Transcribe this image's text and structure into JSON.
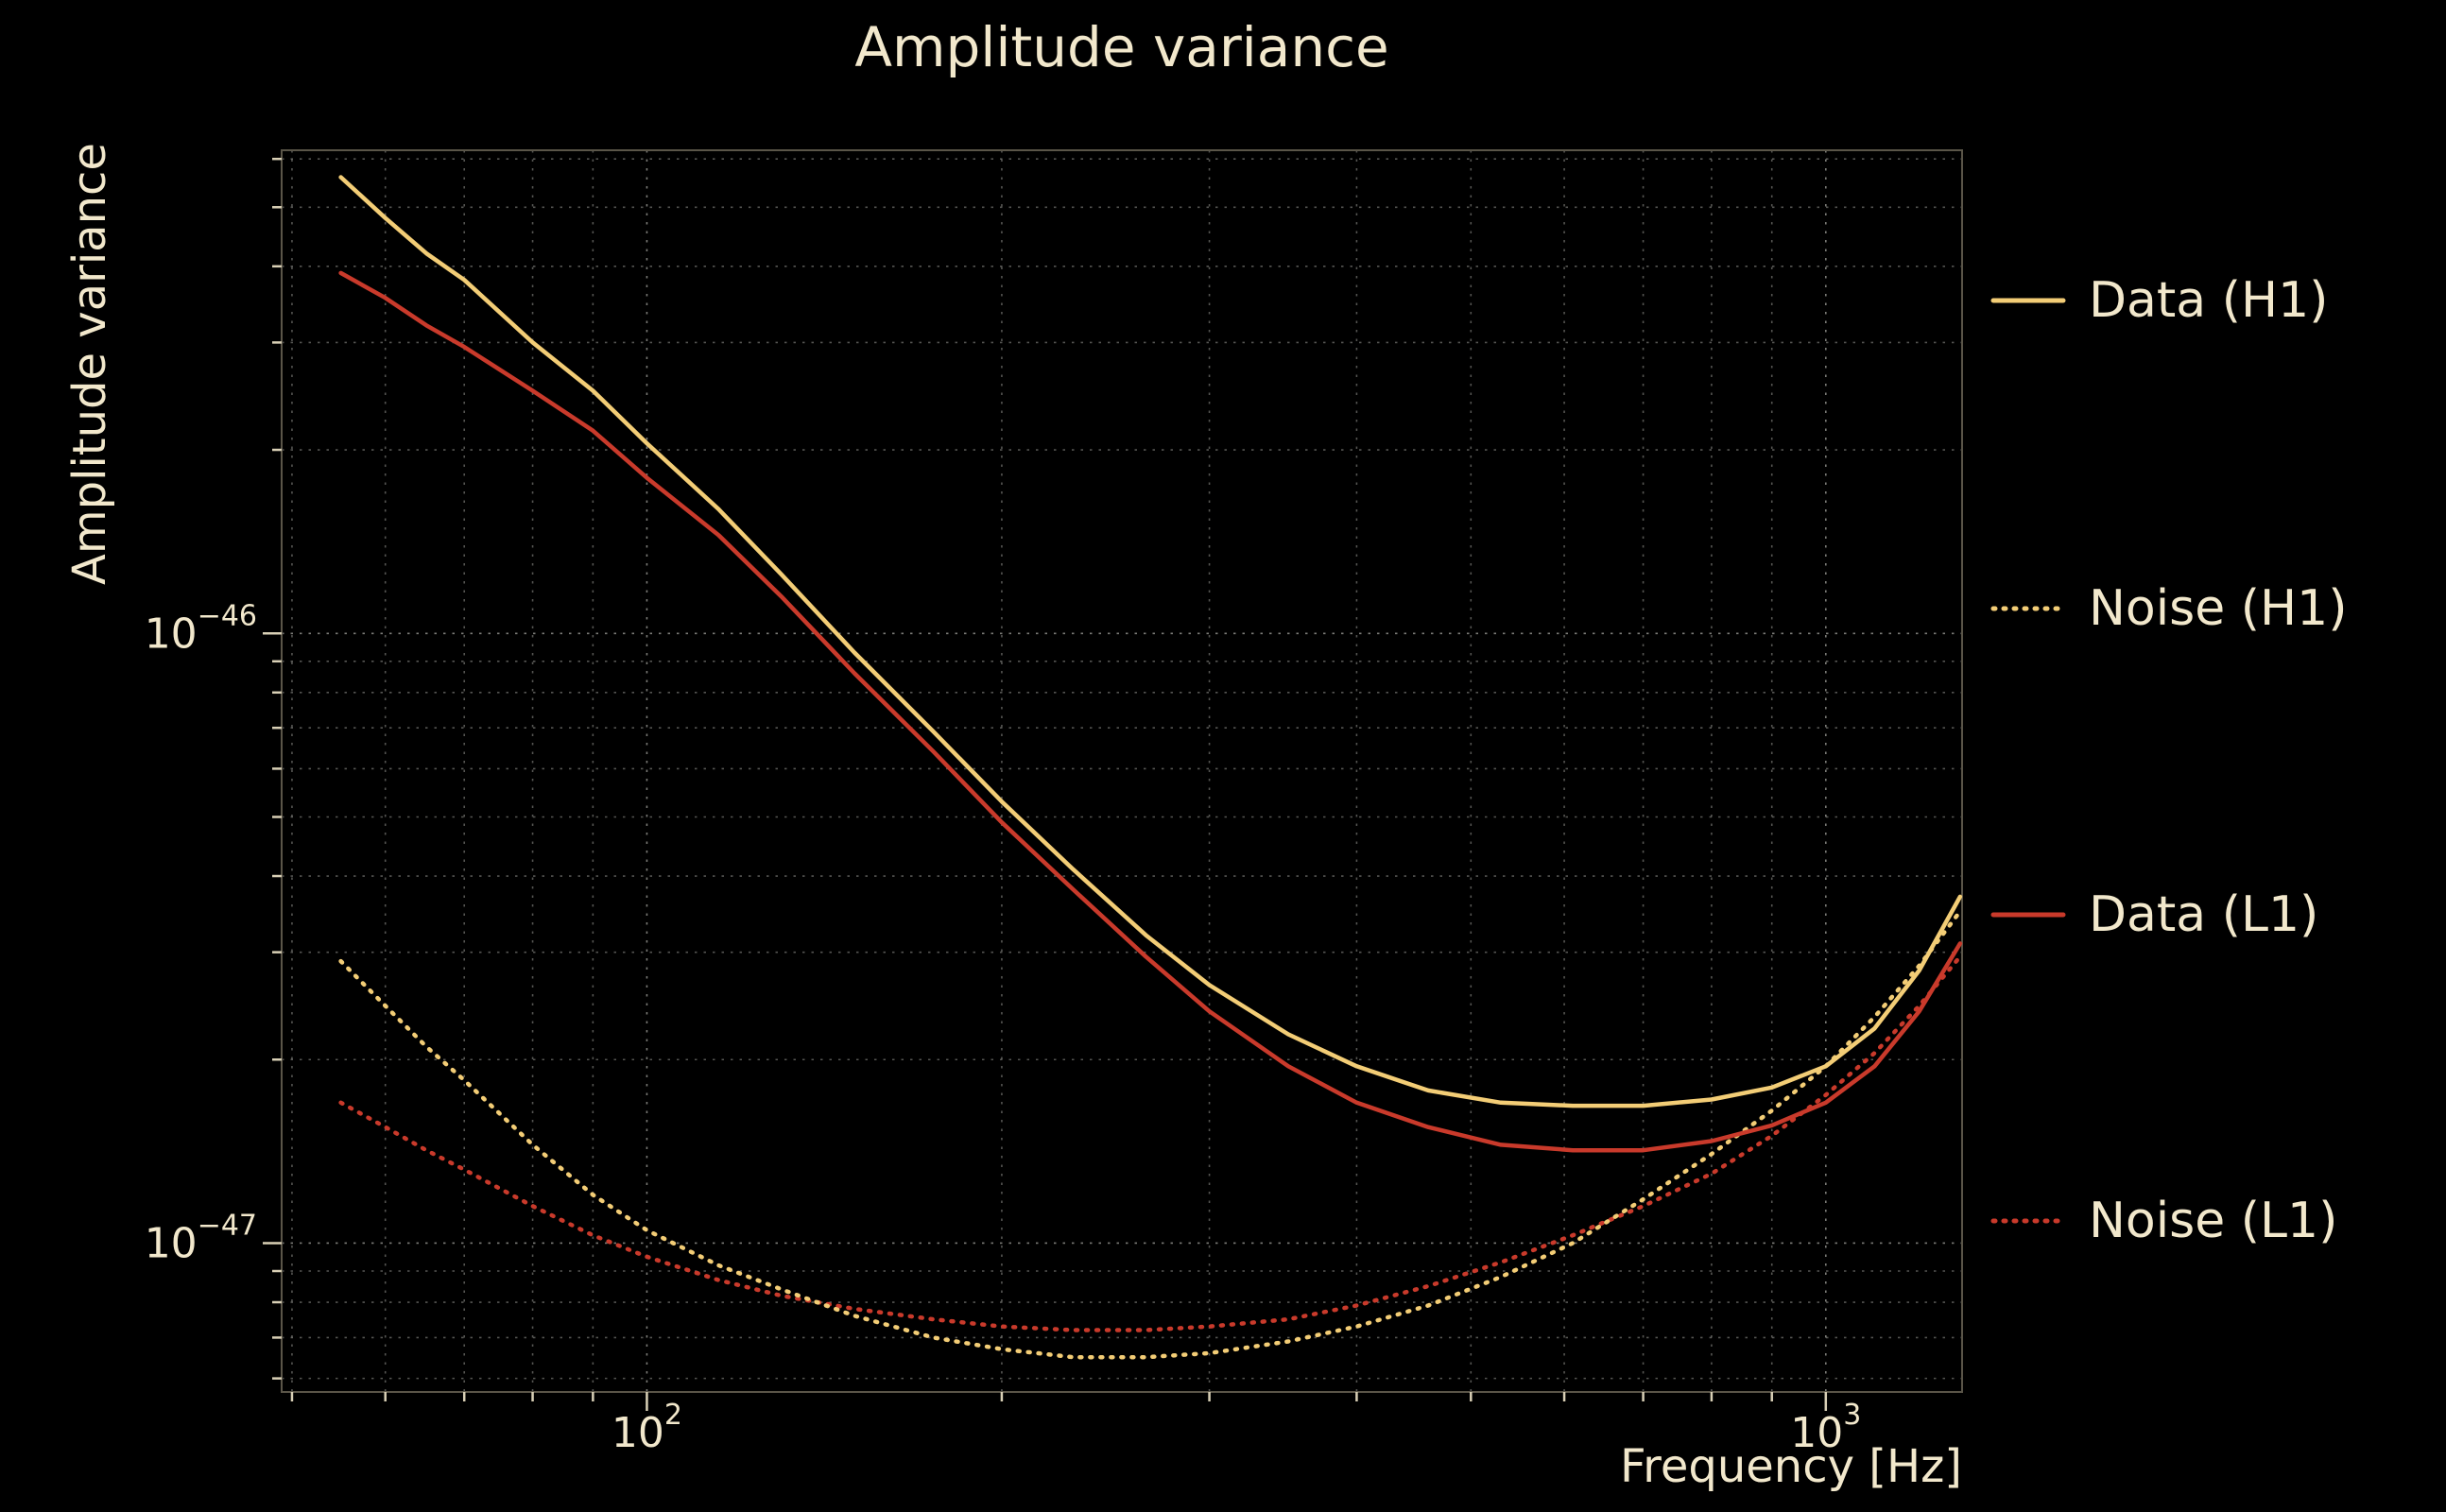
{
  "colors": {
    "background": "#000000",
    "text": "#f2e8cc",
    "grid": "#9c9c96",
    "h1_accent": "#f3cd76",
    "l1_accent": "#c93a2b"
  },
  "chart_data": {
    "type": "line",
    "title": "Amplitude variance",
    "xlabel": "Frequency [Hz]",
    "ylabel": "Amplitude variance",
    "x_scale": "log",
    "y_scale": "log",
    "xlim": [
      49,
      1305
    ],
    "ylim": [
      5.7e-48,
      6.2e-46
    ],
    "grid": true,
    "legend_position": "right-outside",
    "x_ticks": [
      {
        "value": 100,
        "label": "10^2"
      },
      {
        "value": 1000,
        "label": "10^3"
      }
    ],
    "y_ticks": [
      {
        "value": 1e-46,
        "label": "10^−46"
      },
      {
        "value": 1e-47,
        "label": "10^−47"
      }
    ],
    "frequencies": [
      55,
      60,
      65,
      70,
      80,
      90,
      100,
      115,
      130,
      150,
      175,
      200,
      230,
      265,
      300,
      350,
      400,
      460,
      530,
      610,
      700,
      800,
      900,
      1000,
      1100,
      1200,
      1300
    ],
    "series": [
      {
        "name": "Data (H1)",
        "style": "solid",
        "color": "#f3cd76",
        "values": [
          5.6e-46,
          4.8e-46,
          4.2e-46,
          3.8e-46,
          3e-46,
          2.5e-46,
          2.05e-46,
          1.6e-46,
          1.25e-46,
          9.3e-47,
          6.9e-47,
          5.3e-47,
          4.1e-47,
          3.2e-47,
          2.65e-47,
          2.2e-47,
          1.95e-47,
          1.78e-47,
          1.7e-47,
          1.68e-47,
          1.68e-47,
          1.72e-47,
          1.8e-47,
          1.95e-47,
          2.25e-47,
          2.8e-47,
          3.7e-47
        ]
      },
      {
        "name": "Noise (H1)",
        "style": "dotted",
        "color": "#f3cd76",
        "values": [
          2.9e-47,
          2.45e-47,
          2.1e-47,
          1.85e-47,
          1.45e-47,
          1.2e-47,
          1.05e-47,
          9.2e-48,
          8.4e-48,
          7.6e-48,
          7e-48,
          6.7e-48,
          6.5e-48,
          6.5e-48,
          6.6e-48,
          6.9e-48,
          7.3e-48,
          7.9e-48,
          8.8e-48,
          1e-47,
          1.18e-47,
          1.4e-47,
          1.65e-47,
          1.95e-47,
          2.35e-47,
          2.85e-47,
          3.5e-47
        ]
      },
      {
        "name": "Data (L1)",
        "style": "solid",
        "color": "#c93a2b",
        "values": [
          3.9e-46,
          3.55e-46,
          3.2e-46,
          2.95e-46,
          2.5e-46,
          2.15e-46,
          1.8e-46,
          1.45e-46,
          1.15e-46,
          8.6e-47,
          6.4e-47,
          4.9e-47,
          3.8e-47,
          2.95e-47,
          2.4e-47,
          1.95e-47,
          1.7e-47,
          1.55e-47,
          1.45e-47,
          1.42e-47,
          1.42e-47,
          1.47e-47,
          1.56e-47,
          1.7e-47,
          1.95e-47,
          2.4e-47,
          3.1e-47
        ]
      },
      {
        "name": "Noise (L1)",
        "style": "dotted",
        "color": "#c93a2b",
        "values": [
          1.7e-47,
          1.55e-47,
          1.42e-47,
          1.32e-47,
          1.15e-47,
          1.03e-47,
          9.5e-48,
          8.7e-48,
          8.2e-48,
          7.8e-48,
          7.5e-48,
          7.3e-48,
          7.2e-48,
          7.2e-48,
          7.3e-48,
          7.5e-48,
          7.9e-48,
          8.5e-48,
          9.3e-48,
          1.03e-47,
          1.15e-47,
          1.3e-47,
          1.5e-47,
          1.75e-47,
          2.05e-47,
          2.45e-47,
          2.95e-47
        ]
      }
    ]
  }
}
